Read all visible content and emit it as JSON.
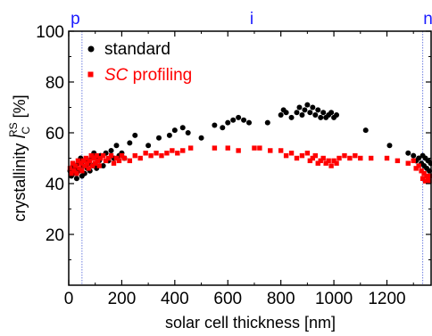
{
  "chart_data": {
    "type": "scatter",
    "xlabel": "solar cell thickness [nm]",
    "ylabel": {
      "prefix": "crystallinity ",
      "symbol": "I",
      "subscript": "C",
      "superscript": "RS",
      "suffix": " [%]"
    },
    "xlim": [
      0,
      1370
    ],
    "ylim": [
      0,
      100
    ],
    "xticks": [
      0,
      200,
      400,
      600,
      800,
      1000,
      1200
    ],
    "yticks": [
      20,
      40,
      60,
      80,
      100
    ],
    "grid": false,
    "legend_position": "top-left",
    "region_boundaries": [
      50,
      1335
    ],
    "region_labels": [
      {
        "text": "p",
        "x": 25
      },
      {
        "text": "i",
        "x": 690
      },
      {
        "text": "n",
        "x": 1355
      }
    ],
    "series": [
      {
        "name": "standard",
        "marker": "circle",
        "color": "#000000",
        "points": [
          [
            5,
            45
          ],
          [
            10,
            43
          ],
          [
            15,
            47
          ],
          [
            20,
            44
          ],
          [
            25,
            46
          ],
          [
            30,
            42
          ],
          [
            35,
            48
          ],
          [
            40,
            45
          ],
          [
            45,
            50
          ],
          [
            50,
            43
          ],
          [
            55,
            47
          ],
          [
            60,
            44
          ],
          [
            65,
            49
          ],
          [
            70,
            46
          ],
          [
            75,
            48
          ],
          [
            80,
            45
          ],
          [
            85,
            50
          ],
          [
            90,
            47
          ],
          [
            95,
            52
          ],
          [
            100,
            48
          ],
          [
            105,
            46
          ],
          [
            110,
            50
          ],
          [
            115,
            49
          ],
          [
            120,
            51
          ],
          [
            130,
            47
          ],
          [
            140,
            52
          ],
          [
            150,
            49
          ],
          [
            160,
            53
          ],
          [
            170,
            50
          ],
          [
            180,
            55
          ],
          [
            190,
            51
          ],
          [
            200,
            52
          ],
          [
            210,
            50
          ],
          [
            230,
            56
          ],
          [
            250,
            59
          ],
          [
            300,
            55
          ],
          [
            340,
            58
          ],
          [
            380,
            59
          ],
          [
            400,
            61
          ],
          [
            430,
            62
          ],
          [
            450,
            60
          ],
          [
            500,
            58
          ],
          [
            550,
            63
          ],
          [
            580,
            62
          ],
          [
            600,
            64
          ],
          [
            620,
            65
          ],
          [
            640,
            66
          ],
          [
            660,
            65
          ],
          [
            680,
            64
          ],
          [
            750,
            64
          ],
          [
            800,
            67
          ],
          [
            810,
            69
          ],
          [
            820,
            68
          ],
          [
            840,
            66
          ],
          [
            860,
            68
          ],
          [
            870,
            70
          ],
          [
            880,
            67
          ],
          [
            890,
            69
          ],
          [
            900,
            71
          ],
          [
            910,
            68
          ],
          [
            920,
            70
          ],
          [
            930,
            67
          ],
          [
            940,
            69
          ],
          [
            950,
            66
          ],
          [
            960,
            68
          ],
          [
            970,
            66
          ],
          [
            980,
            67
          ],
          [
            990,
            68
          ],
          [
            1000,
            66
          ],
          [
            1010,
            67
          ],
          [
            1120,
            61
          ],
          [
            1210,
            55
          ],
          [
            1280,
            52
          ],
          [
            1300,
            51
          ],
          [
            1310,
            49
          ],
          [
            1320,
            50
          ],
          [
            1330,
            48
          ],
          [
            1335,
            51
          ],
          [
            1340,
            47
          ],
          [
            1345,
            50
          ],
          [
            1350,
            46
          ],
          [
            1355,
            49
          ],
          [
            1360,
            45
          ],
          [
            1365,
            48
          ]
        ]
      },
      {
        "name": "SC profiling",
        "marker": "square",
        "color": "#ff0000",
        "points": [
          [
            5,
            46
          ],
          [
            10,
            44
          ],
          [
            15,
            48
          ],
          [
            20,
            45
          ],
          [
            25,
            47
          ],
          [
            30,
            44
          ],
          [
            35,
            49
          ],
          [
            40,
            46
          ],
          [
            45,
            48
          ],
          [
            50,
            45
          ],
          [
            55,
            49
          ],
          [
            60,
            47
          ],
          [
            65,
            50
          ],
          [
            70,
            48
          ],
          [
            75,
            46
          ],
          [
            80,
            49
          ],
          [
            85,
            51
          ],
          [
            90,
            47
          ],
          [
            95,
            50
          ],
          [
            100,
            48
          ],
          [
            105,
            51
          ],
          [
            110,
            49
          ],
          [
            115,
            47
          ],
          [
            120,
            50
          ],
          [
            130,
            51
          ],
          [
            140,
            49
          ],
          [
            150,
            50
          ],
          [
            160,
            51
          ],
          [
            170,
            48
          ],
          [
            180,
            50
          ],
          [
            190,
            49
          ],
          [
            200,
            51
          ],
          [
            210,
            50
          ],
          [
            230,
            49
          ],
          [
            250,
            51
          ],
          [
            270,
            50
          ],
          [
            290,
            52
          ],
          [
            310,
            51
          ],
          [
            330,
            52
          ],
          [
            350,
            51
          ],
          [
            370,
            52
          ],
          [
            390,
            53
          ],
          [
            410,
            52
          ],
          [
            430,
            53
          ],
          [
            460,
            54
          ],
          [
            550,
            54
          ],
          [
            600,
            54
          ],
          [
            640,
            53
          ],
          [
            700,
            54
          ],
          [
            720,
            54
          ],
          [
            760,
            53
          ],
          [
            800,
            53
          ],
          [
            820,
            51
          ],
          [
            840,
            52
          ],
          [
            860,
            50
          ],
          [
            880,
            51
          ],
          [
            900,
            52
          ],
          [
            910,
            49
          ],
          [
            920,
            50
          ],
          [
            930,
            51
          ],
          [
            940,
            48
          ],
          [
            950,
            49
          ],
          [
            960,
            50
          ],
          [
            970,
            48
          ],
          [
            980,
            49
          ],
          [
            990,
            47
          ],
          [
            1000,
            49
          ],
          [
            1010,
            48
          ],
          [
            1020,
            50
          ],
          [
            1040,
            51
          ],
          [
            1060,
            50
          ],
          [
            1080,
            51
          ],
          [
            1100,
            50
          ],
          [
            1140,
            50
          ],
          [
            1200,
            50
          ],
          [
            1240,
            49
          ],
          [
            1280,
            48
          ],
          [
            1300,
            49
          ],
          [
            1310,
            46
          ],
          [
            1320,
            47
          ],
          [
            1330,
            45
          ],
          [
            1335,
            42
          ],
          [
            1340,
            44
          ],
          [
            1345,
            41
          ],
          [
            1350,
            43
          ],
          [
            1355,
            42
          ],
          [
            1360,
            41
          ],
          [
            1365,
            43
          ]
        ]
      }
    ]
  }
}
